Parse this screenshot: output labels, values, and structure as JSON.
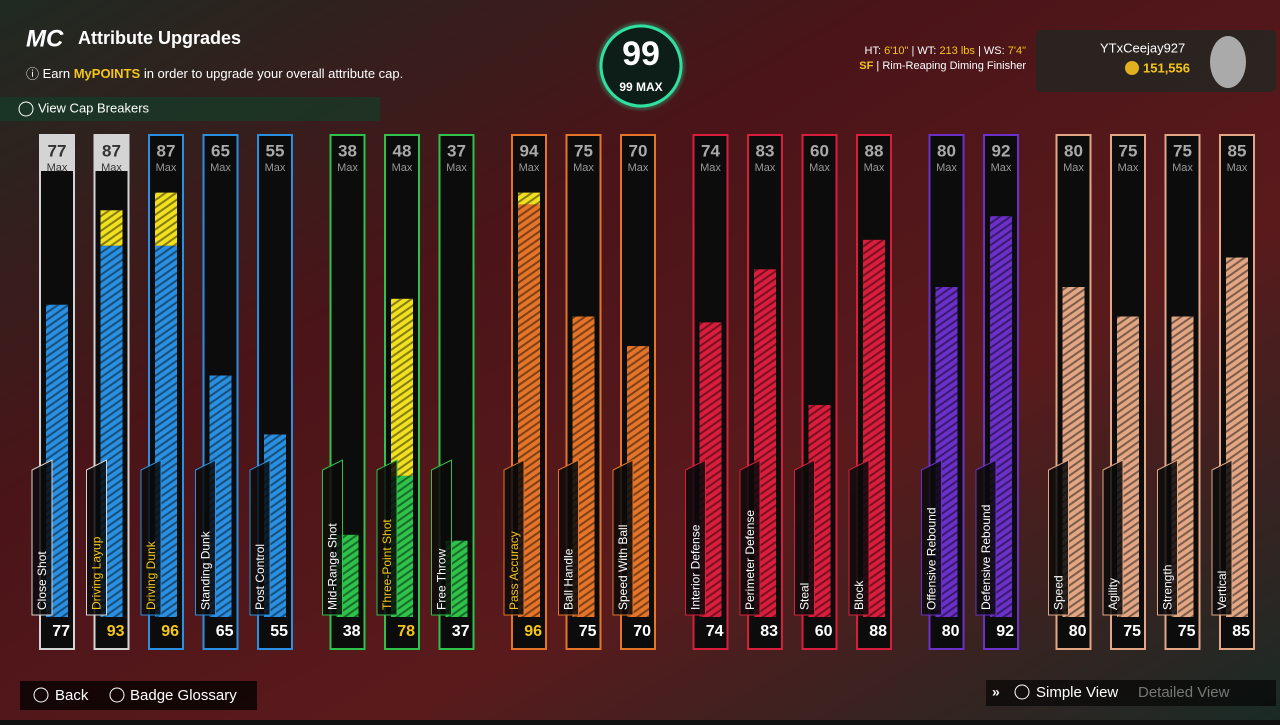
{
  "header": {
    "logo": "MC",
    "title": "Attribute Upgrades",
    "info_prefix": "Earn",
    "info_highlight": "MyPOINTS",
    "info_suffix": "in order to upgrade your overall attribute cap.",
    "cap_breakers": "View Cap Breakers"
  },
  "overall": {
    "value": 99,
    "label": "99 MAX"
  },
  "player": {
    "ht_label": "HT:",
    "ht": "6'10\"",
    "wt_label": "WT:",
    "wt": "213 lbs",
    "ws_label": "WS:",
    "ws": "7'4\"",
    "position": "SF",
    "build": "Rim-Reaping Diming Finisher",
    "gamertag": "YTxCeejay927",
    "vc": "151,556"
  },
  "max_label": "Max",
  "groups": [
    {
      "color": "#2a8fe0",
      "attributes": [
        {
          "name": "Close Shot",
          "base": 77,
          "value": 77,
          "frame": "#d4d4d4"
        },
        {
          "name": "Driving Layup",
          "base": 87,
          "value": 93,
          "frame": "#d4d4d4"
        },
        {
          "name": "Driving Dunk",
          "base": 87,
          "value": 96
        },
        {
          "name": "Standing Dunk",
          "base": 65,
          "value": 65
        },
        {
          "name": "Post Control",
          "base": 55,
          "value": 55
        }
      ]
    },
    {
      "color": "#2ec24a",
      "attributes": [
        {
          "name": "Mid-Range Shot",
          "base": 38,
          "value": 38
        },
        {
          "name": "Three-Point Shot",
          "base": 48,
          "value": 78
        },
        {
          "name": "Free Throw",
          "base": 37,
          "value": 37
        }
      ]
    },
    {
      "color": "#e3742a",
      "attributes": [
        {
          "name": "Pass Accuracy",
          "base": 94,
          "value": 96
        },
        {
          "name": "Ball Handle",
          "base": 75,
          "value": 75
        },
        {
          "name": "Speed With Ball",
          "base": 70,
          "value": 70
        }
      ]
    },
    {
      "color": "#d81e3c",
      "attributes": [
        {
          "name": "Interior Defense",
          "base": 74,
          "value": 74
        },
        {
          "name": "Perimeter Defense",
          "base": 83,
          "value": 83
        },
        {
          "name": "Steal",
          "base": 60,
          "value": 60
        },
        {
          "name": "Block",
          "base": 88,
          "value": 88
        }
      ]
    },
    {
      "color": "#6a30c8",
      "attributes": [
        {
          "name": "Offensive Rebound",
          "base": 80,
          "value": 80
        },
        {
          "name": "Defensive Rebound",
          "base": 92,
          "value": 92
        }
      ]
    },
    {
      "color": "#e2a684",
      "attributes": [
        {
          "name": "Speed",
          "base": 80,
          "value": 80
        },
        {
          "name": "Agility",
          "base": 75,
          "value": 75
        },
        {
          "name": "Strength",
          "base": 75,
          "value": 75
        },
        {
          "name": "Vertical",
          "base": 85,
          "value": 85
        }
      ]
    }
  ],
  "footer": {
    "back": "Back",
    "glossary": "Badge Glossary",
    "simple_view": "Simple View",
    "detailed_view": "Detailed View"
  }
}
